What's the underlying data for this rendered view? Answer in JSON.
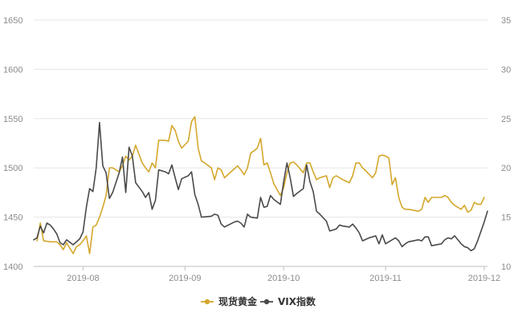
{
  "chart_data": {
    "type": "line",
    "title": "",
    "x": {
      "type": "date",
      "range": [
        "2019-07-17",
        "2019-12-02"
      ],
      "ticks": [
        "2019-08-01",
        "2019-09-01",
        "2019-10-01",
        "2019-11-01",
        "2019-12-01"
      ],
      "tick_labels": [
        "2019-08",
        "2019-09",
        "2019-10",
        "2019-11",
        "2019-12"
      ]
    },
    "y_left": {
      "min": 1400,
      "max": 1650,
      "ticks": [
        1400,
        1450,
        1500,
        1550,
        1600,
        1650
      ]
    },
    "y_right": {
      "min": 10,
      "max": 35,
      "ticks": [
        10,
        15,
        20,
        25,
        30,
        35
      ]
    },
    "grid": "horizontal",
    "legend": {
      "position": "bottom-center"
    },
    "series": [
      {
        "name": "现货黄金",
        "axis": "left",
        "color": "#d4a72c",
        "points": [
          [
            "2019-07-18",
            1426
          ],
          [
            "2019-07-19",
            1444
          ],
          [
            "2019-07-20",
            1426
          ],
          [
            "2019-07-22",
            1425
          ],
          [
            "2019-07-23",
            1425
          ],
          [
            "2019-07-24",
            1425
          ],
          [
            "2019-07-25",
            1422
          ],
          [
            "2019-07-26",
            1417
          ],
          [
            "2019-07-27",
            1424
          ],
          [
            "2019-07-29",
            1413
          ],
          [
            "2019-07-30",
            1420
          ],
          [
            "2019-07-31",
            1422
          ],
          [
            "2019-08-01",
            1426
          ],
          [
            "2019-08-02",
            1431
          ],
          [
            "2019-08-03",
            1413
          ],
          [
            "2019-08-04",
            1440
          ],
          [
            "2019-08-05",
            1442
          ],
          [
            "2019-08-06",
            1450
          ],
          [
            "2019-08-07",
            1460
          ],
          [
            "2019-08-08",
            1472
          ],
          [
            "2019-08-09",
            1500
          ],
          [
            "2019-08-10",
            1500
          ],
          [
            "2019-08-12",
            1496
          ],
          [
            "2019-08-13",
            1502
          ],
          [
            "2019-08-14",
            1512
          ],
          [
            "2019-08-15",
            1508
          ],
          [
            "2019-08-16",
            1512
          ],
          [
            "2019-08-17",
            1523
          ],
          [
            "2019-08-19",
            1505
          ],
          [
            "2019-08-20",
            1500
          ],
          [
            "2019-08-21",
            1496
          ],
          [
            "2019-08-22",
            1505
          ],
          [
            "2019-08-23",
            1500
          ],
          [
            "2019-08-24",
            1528
          ],
          [
            "2019-08-26",
            1528
          ],
          [
            "2019-08-27",
            1527
          ],
          [
            "2019-08-28",
            1543
          ],
          [
            "2019-08-29",
            1538
          ],
          [
            "2019-08-30",
            1527
          ],
          [
            "2019-08-31",
            1520
          ],
          [
            "2019-09-02",
            1527
          ],
          [
            "2019-09-03",
            1547
          ],
          [
            "2019-09-04",
            1552
          ],
          [
            "2019-09-05",
            1520
          ],
          [
            "2019-09-06",
            1507
          ],
          [
            "2019-09-07",
            1505
          ],
          [
            "2019-09-09",
            1500
          ],
          [
            "2019-09-10",
            1488
          ],
          [
            "2019-09-11",
            1500
          ],
          [
            "2019-09-12",
            1498
          ],
          [
            "2019-09-13",
            1490
          ],
          [
            "2019-09-16",
            1499
          ],
          [
            "2019-09-17",
            1502
          ],
          [
            "2019-09-18",
            1498
          ],
          [
            "2019-09-19",
            1493
          ],
          [
            "2019-09-20",
            1500
          ],
          [
            "2019-09-21",
            1515
          ],
          [
            "2019-09-23",
            1520
          ],
          [
            "2019-09-24",
            1530
          ],
          [
            "2019-09-25",
            1503
          ],
          [
            "2019-09-26",
            1505
          ],
          [
            "2019-09-27",
            1495
          ],
          [
            "2019-09-28",
            1484
          ],
          [
            "2019-09-30",
            1472
          ],
          [
            "2019-10-01",
            1480
          ],
          [
            "2019-10-02",
            1495
          ],
          [
            "2019-10-03",
            1505
          ],
          [
            "2019-10-04",
            1506
          ],
          [
            "2019-10-05",
            1503
          ],
          [
            "2019-10-07",
            1495
          ],
          [
            "2019-10-08",
            1505
          ],
          [
            "2019-10-09",
            1505
          ],
          [
            "2019-10-10",
            1496
          ],
          [
            "2019-10-11",
            1488
          ],
          [
            "2019-10-12",
            1490
          ],
          [
            "2019-10-14",
            1492
          ],
          [
            "2019-10-15",
            1480
          ],
          [
            "2019-10-16",
            1490
          ],
          [
            "2019-10-17",
            1492
          ],
          [
            "2019-10-18",
            1490
          ],
          [
            "2019-10-19",
            1488
          ],
          [
            "2019-10-21",
            1485
          ],
          [
            "2019-10-22",
            1492
          ],
          [
            "2019-10-23",
            1505
          ],
          [
            "2019-10-24",
            1505
          ],
          [
            "2019-10-25",
            1500
          ],
          [
            "2019-10-26",
            1497
          ],
          [
            "2019-10-28",
            1490
          ],
          [
            "2019-10-29",
            1495
          ],
          [
            "2019-10-30",
            1512
          ],
          [
            "2019-10-31",
            1513
          ],
          [
            "2019-11-01",
            1512
          ],
          [
            "2019-11-02",
            1510
          ],
          [
            "2019-11-03",
            1483
          ],
          [
            "2019-11-04",
            1490
          ],
          [
            "2019-11-05",
            1470
          ],
          [
            "2019-11-06",
            1460
          ],
          [
            "2019-11-07",
            1458
          ],
          [
            "2019-11-08",
            1458
          ],
          [
            "2019-11-11",
            1456
          ],
          [
            "2019-11-12",
            1458
          ],
          [
            "2019-11-13",
            1470
          ],
          [
            "2019-11-14",
            1465
          ],
          [
            "2019-11-15",
            1470
          ],
          [
            "2019-11-18",
            1470
          ],
          [
            "2019-11-19",
            1472
          ],
          [
            "2019-11-20",
            1470
          ],
          [
            "2019-11-21",
            1465
          ],
          [
            "2019-11-22",
            1462
          ],
          [
            "2019-11-24",
            1458
          ],
          [
            "2019-11-25",
            1462
          ],
          [
            "2019-11-26",
            1455
          ],
          [
            "2019-11-27",
            1457
          ],
          [
            "2019-11-28",
            1465
          ],
          [
            "2019-11-29",
            1463
          ],
          [
            "2019-11-30",
            1463
          ],
          [
            "2019-12-01",
            1470
          ]
        ]
      },
      {
        "name": "VIX指数",
        "axis": "right",
        "color": "#4a4a4a",
        "marker": "circle",
        "points": [
          [
            "2019-07-17",
            12.7
          ],
          [
            "2019-07-18",
            12.9
          ],
          [
            "2019-07-19",
            14.1
          ],
          [
            "2019-07-20",
            13.4
          ],
          [
            "2019-07-21",
            14.4
          ],
          [
            "2019-07-22",
            14.2
          ],
          [
            "2019-07-23",
            13.8
          ],
          [
            "2019-07-24",
            13.3
          ],
          [
            "2019-07-25",
            12.4
          ],
          [
            "2019-07-26",
            12.2
          ],
          [
            "2019-07-27",
            12.7
          ],
          [
            "2019-07-29",
            12.2
          ],
          [
            "2019-07-31",
            12.8
          ],
          [
            "2019-08-01",
            13.5
          ],
          [
            "2019-08-02",
            16.0
          ],
          [
            "2019-08-03",
            17.9
          ],
          [
            "2019-08-04",
            17.6
          ],
          [
            "2019-08-05",
            20.0
          ],
          [
            "2019-08-06",
            24.6
          ],
          [
            "2019-08-07",
            20.2
          ],
          [
            "2019-08-08",
            19.5
          ],
          [
            "2019-08-09",
            16.9
          ],
          [
            "2019-08-10",
            17.5
          ],
          [
            "2019-08-12",
            19.5
          ],
          [
            "2019-08-13",
            21.1
          ],
          [
            "2019-08-14",
            17.5
          ],
          [
            "2019-08-15",
            22.1
          ],
          [
            "2019-08-16",
            21.2
          ],
          [
            "2019-08-17",
            18.5
          ],
          [
            "2019-08-19",
            17.6
          ],
          [
            "2019-08-20",
            17.0
          ],
          [
            "2019-08-21",
            17.5
          ],
          [
            "2019-08-22",
            15.8
          ],
          [
            "2019-08-23",
            16.7
          ],
          [
            "2019-08-24",
            19.8
          ],
          [
            "2019-08-26",
            19.6
          ],
          [
            "2019-08-27",
            19.4
          ],
          [
            "2019-08-28",
            20.3
          ],
          [
            "2019-08-29",
            19.0
          ],
          [
            "2019-08-30",
            17.8
          ],
          [
            "2019-08-31",
            18.9
          ],
          [
            "2019-09-02",
            19.2
          ],
          [
            "2019-09-03",
            19.6
          ],
          [
            "2019-09-04",
            17.3
          ],
          [
            "2019-09-05",
            16.3
          ],
          [
            "2019-09-06",
            15.0
          ],
          [
            "2019-09-09",
            15.1
          ],
          [
            "2019-09-10",
            15.3
          ],
          [
            "2019-09-11",
            15.2
          ],
          [
            "2019-09-12",
            14.3
          ],
          [
            "2019-09-13",
            14.0
          ],
          [
            "2019-09-16",
            14.5
          ],
          [
            "2019-09-17",
            14.6
          ],
          [
            "2019-09-18",
            14.4
          ],
          [
            "2019-09-19",
            14.0
          ],
          [
            "2019-09-20",
            15.3
          ],
          [
            "2019-09-21",
            15.0
          ],
          [
            "2019-09-23",
            14.9
          ],
          [
            "2019-09-24",
            17.0
          ],
          [
            "2019-09-25",
            16.0
          ],
          [
            "2019-09-26",
            16.1
          ],
          [
            "2019-09-27",
            17.2
          ],
          [
            "2019-09-28",
            16.8
          ],
          [
            "2019-09-30",
            16.3
          ],
          [
            "2019-10-01",
            18.6
          ],
          [
            "2019-10-02",
            20.5
          ],
          [
            "2019-10-03",
            19.0
          ],
          [
            "2019-10-04",
            17.1
          ],
          [
            "2019-10-05",
            17.4
          ],
          [
            "2019-10-07",
            17.9
          ],
          [
            "2019-10-08",
            20.3
          ],
          [
            "2019-10-09",
            18.6
          ],
          [
            "2019-10-10",
            17.6
          ],
          [
            "2019-10-11",
            15.6
          ],
          [
            "2019-10-12",
            15.3
          ],
          [
            "2019-10-14",
            14.6
          ],
          [
            "2019-10-15",
            13.6
          ],
          [
            "2019-10-16",
            13.7
          ],
          [
            "2019-10-17",
            13.8
          ],
          [
            "2019-10-18",
            14.2
          ],
          [
            "2019-10-19",
            14.1
          ],
          [
            "2019-10-21",
            14.0
          ],
          [
            "2019-10-22",
            14.3
          ],
          [
            "2019-10-23",
            13.9
          ],
          [
            "2019-10-24",
            13.4
          ],
          [
            "2019-10-25",
            12.6
          ],
          [
            "2019-10-27",
            12.9
          ],
          [
            "2019-10-28",
            13.0
          ],
          [
            "2019-10-29",
            13.1
          ],
          [
            "2019-10-30",
            12.3
          ],
          [
            "2019-10-31",
            13.2
          ],
          [
            "2019-11-01",
            12.3
          ],
          [
            "2019-11-02",
            12.5
          ],
          [
            "2019-11-03",
            12.7
          ],
          [
            "2019-11-04",
            12.9
          ],
          [
            "2019-11-05",
            12.6
          ],
          [
            "2019-11-06",
            12.0
          ],
          [
            "2019-11-07",
            12.3
          ],
          [
            "2019-11-08",
            12.5
          ],
          [
            "2019-11-11",
            12.7
          ],
          [
            "2019-11-12",
            12.6
          ],
          [
            "2019-11-13",
            13.0
          ],
          [
            "2019-11-14",
            13.0
          ],
          [
            "2019-11-15",
            12.1
          ],
          [
            "2019-11-18",
            12.3
          ],
          [
            "2019-11-19",
            12.7
          ],
          [
            "2019-11-20",
            12.9
          ],
          [
            "2019-11-21",
            12.8
          ],
          [
            "2019-11-22",
            13.1
          ],
          [
            "2019-11-24",
            12.3
          ],
          [
            "2019-11-25",
            12.0
          ],
          [
            "2019-11-26",
            11.9
          ],
          [
            "2019-11-27",
            11.6
          ],
          [
            "2019-11-28",
            11.8
          ],
          [
            "2019-11-29",
            12.6
          ],
          [
            "2019-12-01",
            14.5
          ],
          [
            "2019-12-02",
            15.6
          ]
        ]
      }
    ]
  }
}
